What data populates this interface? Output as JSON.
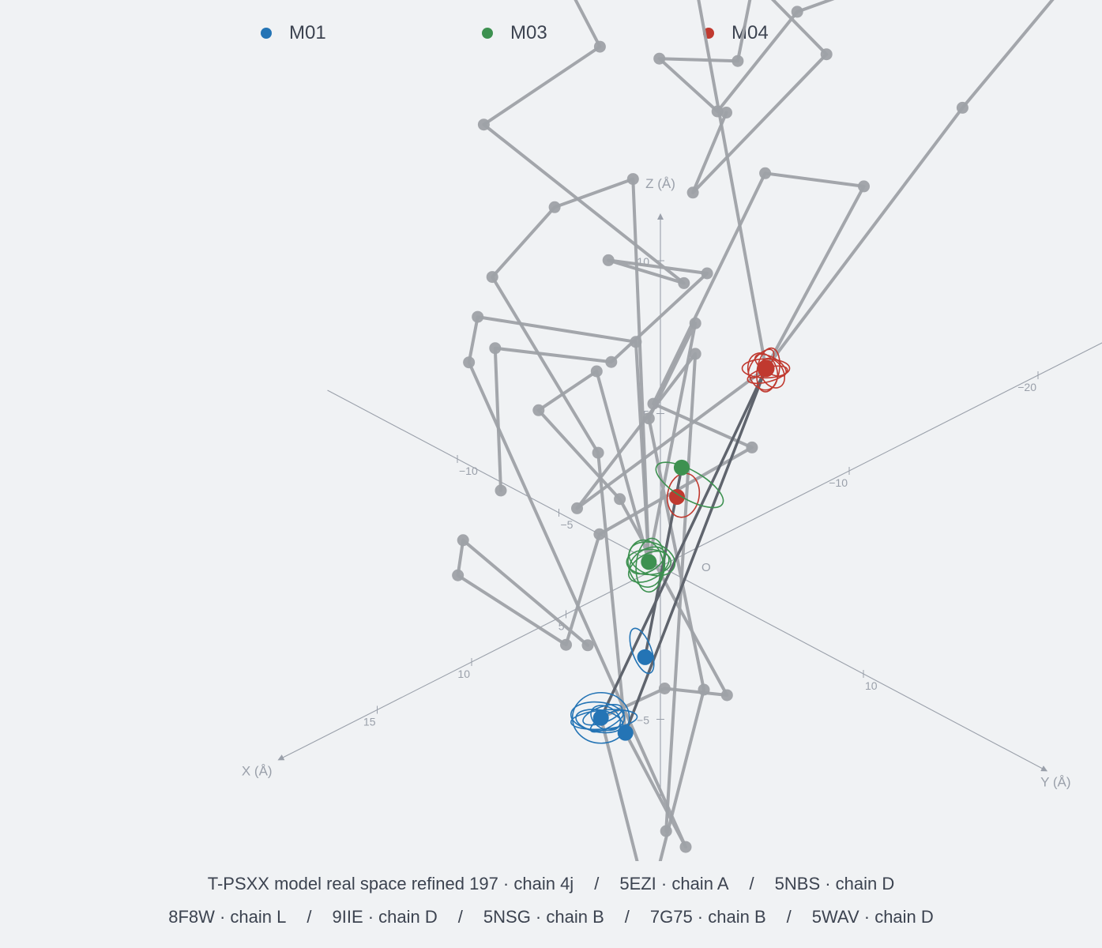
{
  "colors": {
    "background": "#f0f2f4",
    "trace": "#9ea1a7",
    "axis": "#9aa0aa",
    "M01": "#2474b5",
    "M03": "#3d9150",
    "M04": "#c0392f"
  },
  "legend": [
    {
      "label": "M01",
      "color": "#2474b5"
    },
    {
      "label": "M03",
      "color": "#3d9150"
    },
    {
      "label": "M04",
      "color": "#c0392f"
    }
  ],
  "footer": {
    "line1": [
      "T-PSXX model real space refined 197 · chain 4j",
      "5EZI · chain A",
      "5NBS · chain D"
    ],
    "line2": [
      "8F8W · chain L",
      "9IIE · chain D",
      "5NSG · chain B",
      "7G75 · chain B",
      "5WAV · chain D"
    ],
    "separator": "/"
  },
  "chart_data": {
    "type": "scatter",
    "projection": "3d",
    "axes": {
      "x": {
        "label": "X (Å)",
        "ticks": [
          -20,
          -10,
          5,
          10,
          15
        ]
      },
      "y": {
        "label": "Y (Å)",
        "ticks": [
          -10,
          -5,
          10
        ]
      },
      "z": {
        "label": "Z (Å)",
        "ticks": [
          10,
          5,
          -5
        ]
      },
      "origin_label": "O"
    },
    "sites": [
      {
        "name": "M04",
        "color": "#c0392f",
        "points": [
          [
            -7.2,
            -1.5,
            3.7
          ],
          [
            -2.6,
            -1.6,
            0.9
          ]
        ]
      },
      {
        "name": "M03",
        "color": "#3d9150",
        "points": [
          [
            -3.6,
            -2.3,
            1.3
          ],
          [
            0.4,
            -0.2,
            0.2
          ]
        ]
      },
      {
        "name": "M01",
        "color": "#2474b5",
        "points": [
          [
            4.9,
            3.8,
            -0.1
          ],
          [
            6.7,
            3.3,
            -1.7
          ],
          [
            6.8,
            4.6,
            -1.7
          ]
        ]
      }
    ],
    "traces": [
      {
        "chain": "T-PSXX model real space refined 197 · chain 4j",
        "points": [
          [
            -7.2,
            -1.5,
            3.7
          ],
          [
            -16.0,
            0.0,
            10.0
          ],
          [
            -23.0,
            0.0,
            13.0
          ],
          [
            -20.0,
            -8.0,
            10.0
          ],
          [
            -18.0,
            -10.0,
            9.0
          ],
          [
            -17.0,
            -13.0,
            5.0
          ],
          [
            -15.0,
            -14.0,
            7.0
          ],
          [
            -17.0,
            -12.0,
            7.0
          ],
          [
            -20.0,
            -14.0,
            8.0
          ],
          [
            -26.0,
            -16.0,
            3.0
          ],
          [
            -20.0,
            -17.0,
            0.0
          ],
          [
            -25.0,
            -20.0,
            0.0
          ]
        ]
      },
      {
        "chain": "5EZI · chain A",
        "points": [
          [
            -7.2,
            -1.5,
            3.7
          ],
          [
            -18.0,
            -18.0,
            18.0
          ],
          [
            -18.0,
            -12.0,
            14.0
          ],
          [
            -12.0,
            -16.0,
            10.0
          ],
          [
            -14.0,
            -16.0,
            7.0
          ],
          [
            -10.0,
            -18.0,
            5.0
          ],
          [
            -12.0,
            -10.0,
            2.0
          ],
          [
            -8.0,
            -10.0,
            4.0
          ],
          [
            -10.0,
            -7.0,
            4.0
          ],
          [
            -6.0,
            -8.0,
            2.0
          ],
          [
            -2.0,
            -10.0,
            3.0
          ],
          [
            2.0,
            -6.0,
            1.0
          ]
        ]
      },
      {
        "chain": "5NBS · chain D",
        "points": [
          [
            -7.2,
            -1.5,
            3.7
          ],
          [
            -14.0,
            -3.0,
            7.0
          ],
          [
            -12.0,
            -6.0,
            7.0
          ],
          [
            -5.0,
            -5.0,
            2.0
          ],
          [
            -7.0,
            -2.0,
            1.0
          ],
          [
            0.0,
            -3.0,
            0.0
          ],
          [
            5.0,
            0.0,
            -1.0
          ],
          [
            7.5,
            -3.0,
            1.0
          ],
          [
            4.0,
            -6.0,
            0.0
          ],
          [
            6.0,
            2.0,
            0.0
          ]
        ]
      },
      {
        "chain": "8F8W · chain L",
        "points": [
          [
            -7.2,
            -1.5,
            3.7
          ],
          [
            -1.5,
            -5.5,
            -0.5
          ],
          [
            -4.0,
            -2.0,
            5.0
          ],
          [
            4.0,
            4.0,
            -6.0
          ]
        ]
      },
      {
        "chain": "9IIE · chain D",
        "points": [
          [
            0.4,
            -0.2,
            0.2
          ],
          [
            -5.0,
            -6.0,
            9.0
          ],
          [
            -3.0,
            -8.0,
            8.0
          ],
          [
            -4.0,
            -12.0,
            4.0
          ],
          [
            -1.0,
            -4.0,
            2.0
          ],
          [
            6.8,
            4.6,
            -1.7
          ]
        ]
      },
      {
        "chain": "5NSG · chain B",
        "points": [
          [
            0.4,
            -0.2,
            0.2
          ],
          [
            -4.0,
            -2.0,
            6.0
          ],
          [
            -1.0,
            -1.5,
            4.0
          ],
          [
            2.0,
            4.0,
            -2.0
          ],
          [
            6.0,
            5.0,
            -7.5
          ],
          [
            6.7,
            3.3,
            -1.7
          ]
        ]
      },
      {
        "chain": "7G75 · chain B",
        "points": [
          [
            0.4,
            -0.2,
            0.2
          ],
          [
            -3.0,
            -4.0,
            5.0
          ],
          [
            0.0,
            -9.0,
            5.0
          ],
          [
            1.0,
            -8.5,
            4.0
          ],
          [
            3.5,
            4.5,
            -6.5
          ],
          [
            6.8,
            4.6,
            -1.7
          ]
        ]
      },
      {
        "chain": "5WAV · chain D",
        "points": [
          [
            0.4,
            -0.2,
            0.2
          ],
          [
            -2.0,
            -5.0,
            4.0
          ],
          [
            0.0,
            -6.0,
            3.0
          ],
          [
            0.0,
            -2.0,
            1.5
          ],
          [
            4.0,
            7.0,
            -0.5
          ],
          [
            3.0,
            3.0,
            -2.0
          ],
          [
            6.7,
            3.3,
            -1.7
          ]
        ]
      }
    ]
  }
}
